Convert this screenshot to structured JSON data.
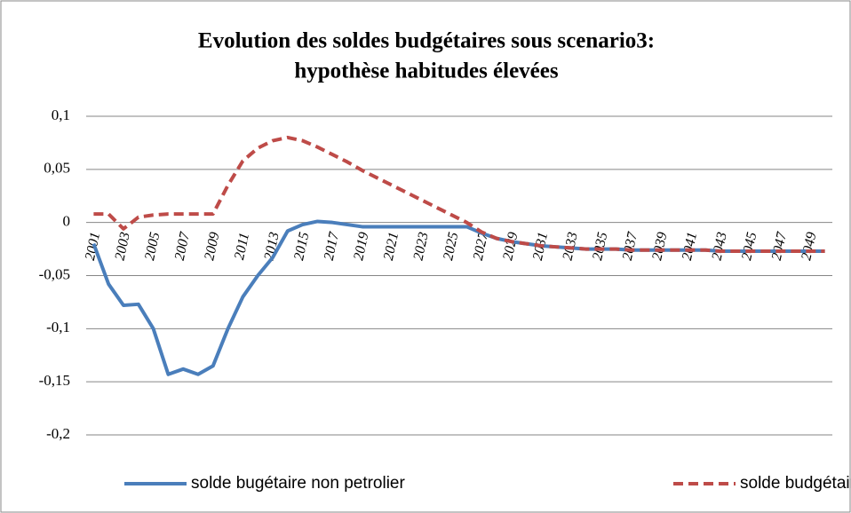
{
  "chart_data": {
    "type": "line",
    "title": [
      "Evolution des soldes budgétaires sous scenario3:",
      "hypothèse habitudes élevées"
    ],
    "categories": [
      "2001",
      null,
      "2003",
      null,
      "2005",
      null,
      "2007",
      null,
      "2009",
      null,
      "2011",
      null,
      "2013",
      null,
      "2015",
      null,
      "2017",
      null,
      "2019",
      null,
      "2021",
      null,
      "2023",
      null,
      "2025",
      null,
      "2027",
      null,
      "2029",
      null,
      "2031",
      null,
      "2033",
      null,
      "2035",
      null,
      "2037",
      null,
      "2039",
      null,
      "2041",
      null,
      "2043",
      null,
      "2045",
      null,
      "2047",
      null,
      "2049",
      null
    ],
    "series": [
      {
        "name": "solde bugétaire non petrolier",
        "color": "#4a7ebb",
        "dash": false,
        "values": [
          -0.02,
          -0.058,
          -0.078,
          -0.077,
          -0.1,
          -0.143,
          -0.138,
          -0.143,
          -0.135,
          -0.1,
          -0.07,
          -0.05,
          -0.033,
          -0.008,
          -0.002,
          0.001,
          0,
          -0.002,
          -0.004,
          -0.004,
          -0.004,
          -0.004,
          -0.004,
          -0.004,
          -0.004,
          -0.004,
          -0.01,
          -0.015,
          -0.018,
          -0.02,
          -0.022,
          -0.023,
          -0.024,
          -0.025,
          -0.025,
          -0.025,
          -0.026,
          -0.026,
          -0.026,
          -0.026,
          -0.026,
          -0.026,
          -0.027,
          -0.027,
          -0.027,
          -0.027,
          -0.027,
          -0.027,
          -0.027,
          -0.027
        ]
      },
      {
        "name": "solde budgétaire",
        "color": "#be4b48",
        "dash": true,
        "values": [
          0.008,
          0.008,
          -0.006,
          0.005,
          0.007,
          0.008,
          0.008,
          0.008,
          0.008,
          0.035,
          0.058,
          0.07,
          0.077,
          0.08,
          0.077,
          0.071,
          0.064,
          0.057,
          0.049,
          0.042,
          0.035,
          0.028,
          0.021,
          0.014,
          0.007,
          0,
          -0.009,
          -0.015,
          -0.018,
          -0.02,
          -0.022,
          -0.023,
          -0.024,
          -0.025,
          -0.025,
          -0.025,
          -0.026,
          -0.026,
          -0.026,
          -0.026,
          -0.026,
          -0.026,
          -0.027,
          -0.027,
          -0.027,
          -0.027,
          -0.027,
          -0.027,
          -0.027,
          -0.027
        ]
      }
    ],
    "ylim": [
      -0.2,
      0.1
    ],
    "yticks": [
      {
        "value": -0.2,
        "label": "-0,2"
      },
      {
        "value": -0.15,
        "label": "-0,15"
      },
      {
        "value": -0.1,
        "label": "-0,1"
      },
      {
        "value": -0.05,
        "label": "-0,05"
      },
      0,
      {
        "value": 0.05,
        "label": "0,05"
      },
      {
        "value": 0.1,
        "label": "0,1"
      }
    ],
    "grid": true,
    "legend": "bottom"
  }
}
